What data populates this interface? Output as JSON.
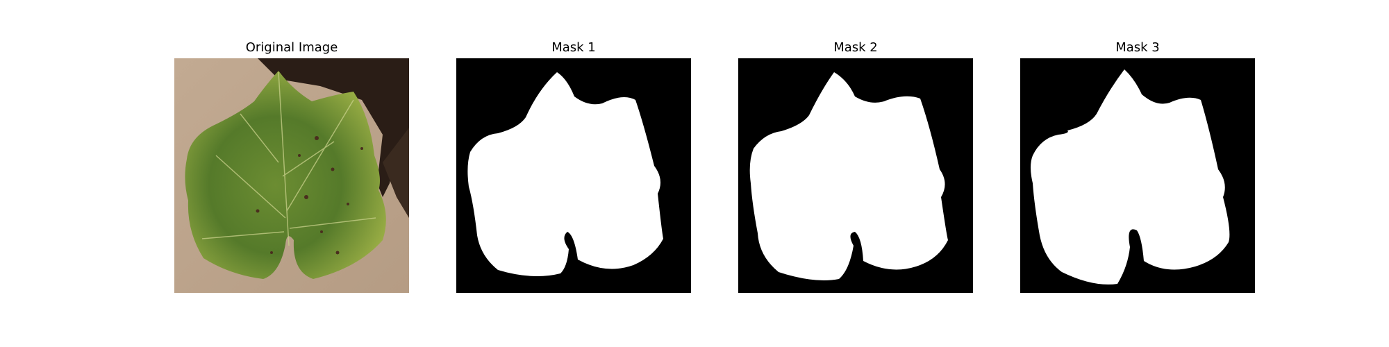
{
  "panels": [
    {
      "title": "Original Image",
      "kind": "photo"
    },
    {
      "title": "Mask 1",
      "kind": "mask"
    },
    {
      "title": "Mask 2",
      "kind": "mask"
    },
    {
      "title": "Mask 3",
      "kind": "mask"
    }
  ],
  "colors": {
    "background": "#ffffff",
    "mask_background": "#000000",
    "mask_foreground": "#ffffff",
    "leaf_dark": "#3f5f22",
    "leaf_mid": "#6c8d32",
    "leaf_light": "#a8b84a",
    "ground": "#bca48a",
    "shadow": "#2a1d16"
  },
  "icons": []
}
